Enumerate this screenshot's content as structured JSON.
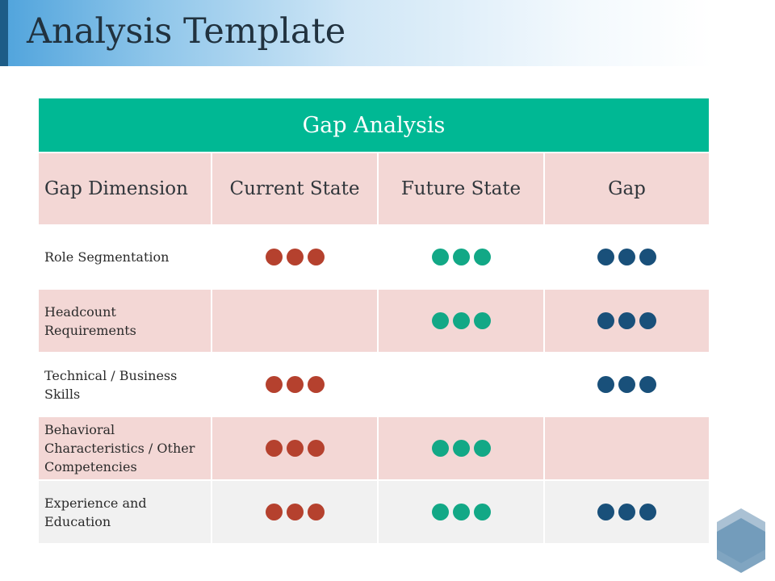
{
  "slide": {
    "title": "Analysis Template"
  },
  "table": {
    "banner": "Gap Analysis",
    "headers": [
      "Gap Dimension",
      "Current State",
      "Future State",
      "Gap"
    ],
    "rows": [
      {
        "label": "Role Segmentation",
        "current": true,
        "future": true,
        "gap": true,
        "shade": "white"
      },
      {
        "label": "Headcount Requirements",
        "current": false,
        "future": true,
        "gap": true,
        "shade": "pink"
      },
      {
        "label": "Technical / Business Skills",
        "current": true,
        "future": false,
        "gap": true,
        "shade": "white"
      },
      {
        "label": "Behavioral Characteristics / Other Competencies",
        "current": true,
        "future": true,
        "gap": false,
        "shade": "pink"
      },
      {
        "label": "Experience and Education",
        "current": true,
        "future": true,
        "gap": true,
        "shade": "gray"
      }
    ]
  },
  "colors": {
    "banner": "#00b894",
    "current_dots": "#b5412e",
    "future_dots": "#12a886",
    "gap_dots": "#19507a",
    "header_bg": "#f3d7d5"
  },
  "icons": [
    "hexagon-logo-icon"
  ]
}
